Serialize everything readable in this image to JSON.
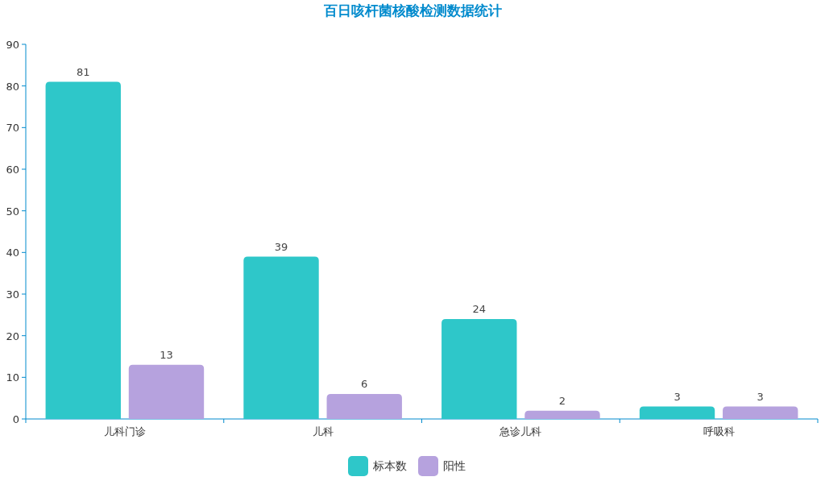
{
  "chart_data": {
    "type": "bar",
    "title": "百日咳杆菌核酸检测数据统计",
    "categories": [
      "儿科门诊",
      "儿科",
      "急诊儿科",
      "呼吸科"
    ],
    "series": [
      {
        "name": "标本数",
        "color": "#2ec7c9",
        "values": [
          81,
          39,
          24,
          3
        ]
      },
      {
        "name": "阳性",
        "color": "#b6a2de",
        "values": [
          13,
          6,
          2,
          3
        ]
      }
    ],
    "ylim": [
      0,
      90
    ],
    "yticks": [
      0,
      10,
      20,
      30,
      40,
      50,
      60,
      70,
      80,
      90
    ],
    "data_labels": true,
    "grid": false,
    "legend": "bottom"
  }
}
